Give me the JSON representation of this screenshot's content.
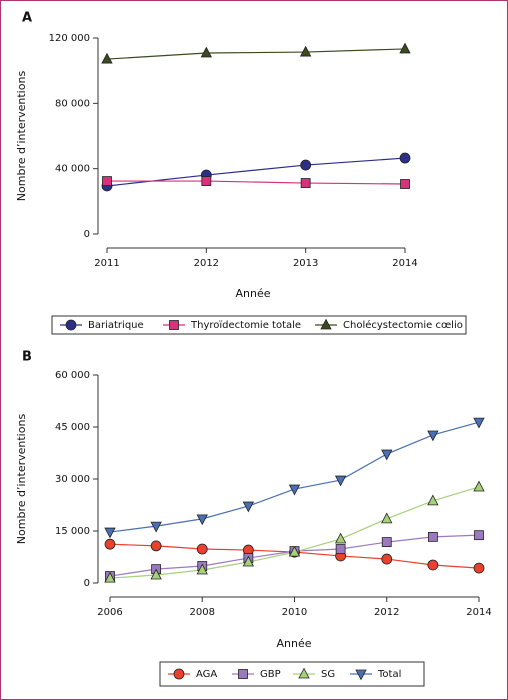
{
  "chart_data": [
    {
      "type": "line",
      "panel_label": "A",
      "x_label": "Année",
      "y_label": "Nombre d’interventions",
      "x": [
        2011,
        2012,
        2013,
        2014
      ],
      "xlim": [
        2011,
        2014
      ],
      "xticks": [
        2011,
        2012,
        2013,
        2014
      ],
      "ylim": [
        0,
        120000
      ],
      "yticks": [
        {
          "value": 0,
          "label": "0"
        },
        {
          "value": 40000,
          "label": "40 000"
        },
        {
          "value": 80000,
          "label": "80 000"
        },
        {
          "value": 120000,
          "label": "120 000"
        }
      ],
      "series": [
        {
          "name": "Bariatrique",
          "color": "#2b2f8a",
          "marker": "circle",
          "values": [
            29400,
            36100,
            42200,
            46500
          ]
        },
        {
          "name": "Thyroïdectomie totale",
          "color": "#d6337a",
          "marker": "square",
          "values": [
            32400,
            32400,
            31200,
            30600
          ]
        },
        {
          "name": "Cholécystectomie cœlio",
          "color": "#3b4a1f",
          "marker": "triangle",
          "values": [
            107100,
            110800,
            111400,
            113300
          ]
        }
      ]
    },
    {
      "type": "line",
      "panel_label": "B",
      "x_label": "Année",
      "y_label": "Nombre d’interventions",
      "x": [
        2006,
        2007,
        2008,
        2009,
        2010,
        2011,
        2012,
        2013,
        2014
      ],
      "xlim": [
        2006,
        2014
      ],
      "xticks": [
        2006,
        2008,
        2010,
        2012,
        2014
      ],
      "ylim": [
        0,
        60000
      ],
      "yticks": [
        {
          "value": 0,
          "label": "0"
        },
        {
          "value": 15000,
          "label": "15 000"
        },
        {
          "value": 30000,
          "label": "30 000"
        },
        {
          "value": 45000,
          "label": "45 000"
        },
        {
          "value": 60000,
          "label": "60 000"
        }
      ],
      "series": [
        {
          "name": "AGA",
          "color": "#e8412c",
          "marker": "circle",
          "values": [
            11200,
            10700,
            9800,
            9500,
            8900,
            7800,
            6900,
            5200,
            4300
          ]
        },
        {
          "name": "GBP",
          "color": "#9b79c0",
          "marker": "square",
          "values": [
            2000,
            4000,
            4900,
            7200,
            9200,
            9800,
            11800,
            13300,
            13800
          ]
        },
        {
          "name": "SG",
          "color": "#a6d07a",
          "marker": "triangle",
          "values": [
            1400,
            2300,
            3750,
            6050,
            8900,
            12700,
            18500,
            23700,
            27700
          ]
        },
        {
          "name": "Total",
          "color": "#4a6fb5",
          "marker": "triangle-down",
          "values": [
            14700,
            16400,
            18500,
            22200,
            27100,
            29700,
            37200,
            42700,
            46400
          ]
        }
      ]
    }
  ]
}
